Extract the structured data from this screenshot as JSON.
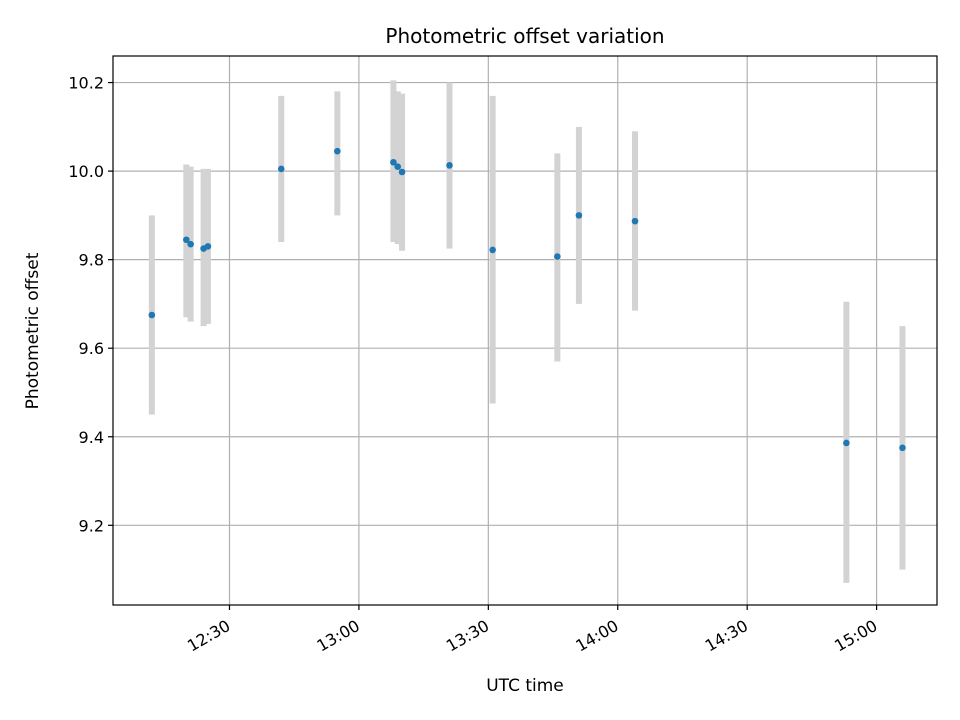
{
  "chart_data": {
    "type": "scatter",
    "title": "Photometric offset variation",
    "xlabel": "UTC time",
    "ylabel": "Photometric offset",
    "x_axis": {
      "kind": "time",
      "range": [
        "12:03",
        "15:14"
      ],
      "ticks": [
        "12:30",
        "13:00",
        "13:30",
        "14:00",
        "14:30",
        "15:00"
      ]
    },
    "y_axis": {
      "range": [
        9.02,
        10.26
      ],
      "ticks": [
        9.2,
        9.4,
        9.6,
        9.8,
        10.0,
        10.2
      ],
      "tick_labels": [
        "9.2",
        "9.4",
        "9.6",
        "9.8",
        "10.0",
        "10.2"
      ]
    },
    "grid": true,
    "colors": {
      "point": "#1f77b4",
      "errorbar": "#d3d3d3",
      "grid": "#b0b0b0"
    },
    "points": [
      {
        "time": "12:12",
        "y": 9.675,
        "yerr_low": 9.45,
        "yerr_high": 9.9
      },
      {
        "time": "12:20",
        "y": 9.845,
        "yerr_low": 9.67,
        "yerr_high": 10.015
      },
      {
        "time": "12:21",
        "y": 9.835,
        "yerr_low": 9.66,
        "yerr_high": 10.01
      },
      {
        "time": "12:24",
        "y": 9.825,
        "yerr_low": 9.65,
        "yerr_high": 10.005
      },
      {
        "time": "12:25",
        "y": 9.83,
        "yerr_low": 9.655,
        "yerr_high": 10.005
      },
      {
        "time": "12:42",
        "y": 10.005,
        "yerr_low": 9.84,
        "yerr_high": 10.17
      },
      {
        "time": "12:55",
        "y": 10.045,
        "yerr_low": 9.9,
        "yerr_high": 10.18
      },
      {
        "time": "13:08",
        "y": 10.02,
        "yerr_low": 9.84,
        "yerr_high": 10.205
      },
      {
        "time": "13:09",
        "y": 10.01,
        "yerr_low": 9.835,
        "yerr_high": 10.18
      },
      {
        "time": "13:10",
        "y": 9.998,
        "yerr_low": 9.82,
        "yerr_high": 10.175
      },
      {
        "time": "13:21",
        "y": 10.013,
        "yerr_low": 9.825,
        "yerr_high": 10.2
      },
      {
        "time": "13:31",
        "y": 9.822,
        "yerr_low": 9.475,
        "yerr_high": 10.17
      },
      {
        "time": "13:46",
        "y": 9.807,
        "yerr_low": 9.57,
        "yerr_high": 10.04
      },
      {
        "time": "13:51",
        "y": 9.9,
        "yerr_low": 9.7,
        "yerr_high": 10.1
      },
      {
        "time": "14:04",
        "y": 9.887,
        "yerr_low": 9.685,
        "yerr_high": 10.09
      },
      {
        "time": "14:53",
        "y": 9.386,
        "yerr_low": 9.07,
        "yerr_high": 9.705
      },
      {
        "time": "15:06",
        "y": 9.375,
        "yerr_low": 9.1,
        "yerr_high": 9.65
      }
    ]
  }
}
